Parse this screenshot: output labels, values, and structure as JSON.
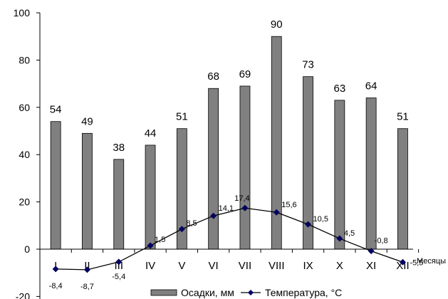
{
  "chart_data": {
    "type": "bar",
    "categories": [
      "I",
      "II",
      "III",
      "IV",
      "V",
      "VI",
      "VII",
      "VIII",
      "IX",
      "X",
      "XI",
      "XII"
    ],
    "series": [
      {
        "name": "Осадки, мм",
        "type": "bar",
        "values": [
          54,
          49,
          38,
          44,
          51,
          68,
          69,
          90,
          73,
          63,
          64,
          51
        ],
        "color": "#808080"
      },
      {
        "name": "Температура, °С",
        "type": "line",
        "values": [
          -8.4,
          -8.7,
          -5.4,
          1.5,
          8.5,
          14.1,
          17.4,
          15.6,
          10.5,
          4.5,
          -0.8,
          -5.5
        ],
        "color": "#000060"
      }
    ],
    "bar_labels": [
      "54",
      "49",
      "38",
      "44",
      "51",
      "68",
      "69",
      "90",
      "73",
      "63",
      "64",
      "51"
    ],
    "temp_labels": [
      "-8,4",
      "-8,7",
      "-5,4",
      "1,5",
      "8,5",
      "14,1",
      "17,4",
      "15,6",
      "10,5",
      "4,5",
      "-0,8",
      "-5,5"
    ],
    "y_ticks": [
      -20,
      0,
      20,
      40,
      60,
      80,
      100
    ],
    "ylim": [
      -20,
      100
    ],
    "xlabel": "Месяцы",
    "legend_position": "bottom"
  }
}
